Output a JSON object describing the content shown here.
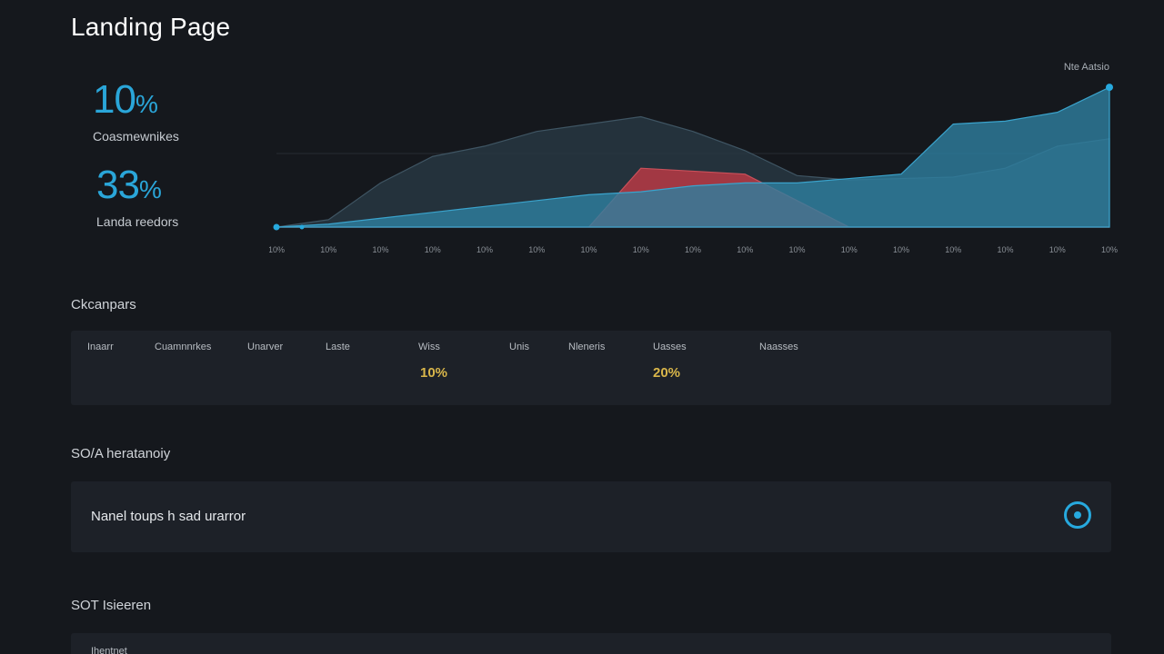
{
  "page": {
    "title": "Landing Page"
  },
  "kpis": [
    {
      "value": "10",
      "unit": "%",
      "label": "Coasmewnikes"
    },
    {
      "value": "33",
      "unit": "%",
      "label": "Landa reedors"
    }
  ],
  "chart": {
    "corner_label": "Nte Aatsio"
  },
  "chart_data": {
    "type": "area",
    "x": [
      "10%",
      "10%",
      "10%",
      "10%",
      "10%",
      "10%",
      "10%",
      "10%",
      "10%",
      "10%",
      "10%",
      "10%",
      "10%",
      "10%",
      "10%",
      "10%",
      "10%"
    ],
    "series": [
      {
        "values": [
          0,
          2,
          6,
          10,
          14,
          18,
          22,
          24,
          28,
          30,
          30,
          33,
          36,
          70,
          72,
          78,
          95
        ]
      },
      {
        "values": [
          0,
          5,
          30,
          48,
          55,
          65,
          70,
          75,
          65,
          52,
          35,
          32,
          33,
          34,
          40,
          55,
          60
        ]
      },
      {
        "values": [
          0,
          0,
          0,
          0,
          0,
          0,
          0,
          40,
          38,
          36,
          18,
          0,
          0,
          0,
          0,
          0,
          0
        ]
      }
    ],
    "colors": [
      "#2e7fa0",
      "#2a3b47",
      "#b83a44"
    ],
    "ylim": [
      0,
      100
    ]
  },
  "sections": {
    "metrics_label": "Ckcanpars",
    "notify_label": "SO/A heratanoiy",
    "bottom_label": "SOT Isieeren"
  },
  "metrics": {
    "columns": [
      "Inaarr",
      "Cuamnnrkes",
      "Unarver",
      "Laste",
      "Wiss",
      "Unis",
      "Nleneris",
      "Uasses",
      "Naasses"
    ],
    "values": [
      "10%",
      "20%"
    ]
  },
  "notify": {
    "text": "Nanel toups h sad urarror"
  },
  "bottom": {
    "text": "Ihentnet"
  },
  "colors": {
    "accent": "#2aa6d9",
    "warning": "#d9b64a",
    "background": "#15181d",
    "panel": "#1d2128"
  }
}
